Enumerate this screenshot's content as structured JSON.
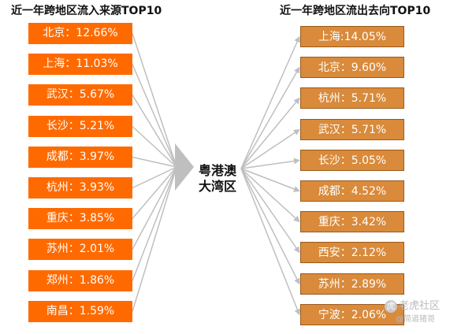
{
  "headings": {
    "inflow": "近一年跨地区流入来源TOP10",
    "outflow": "近一年跨地区流出去向TOP10"
  },
  "center": {
    "line1": "粤港澳",
    "line2": "大湾区"
  },
  "inflow": [
    {
      "city": "北京",
      "share": "12.66%",
      "text": "北京：12.66%"
    },
    {
      "city": "上海",
      "share": "11.03%",
      "text": "上海：11.03%"
    },
    {
      "city": "武汉",
      "share": "5.67%",
      "text": "武汉：5.67%"
    },
    {
      "city": "长沙",
      "share": "5.21%",
      "text": "长沙：5.21%"
    },
    {
      "city": "成都",
      "share": "3.97%",
      "text": "成都：3.97%"
    },
    {
      "city": "杭州",
      "share": "3.93%",
      "text": "杭州：3.93%"
    },
    {
      "city": "重庆",
      "share": "3.85%",
      "text": "重庆：3.85%"
    },
    {
      "city": "苏州",
      "share": "2.01%",
      "text": "苏州：2.01%"
    },
    {
      "city": "郑州",
      "share": "1.86%",
      "text": "郑州：1.86%"
    },
    {
      "city": "南昌",
      "share": "1.59%",
      "text": "南昌：1.59%"
    }
  ],
  "outflow": [
    {
      "city": "上海",
      "share": "14.05%",
      "text": "上海:14.05%"
    },
    {
      "city": "北京",
      "share": "9.60%",
      "text": "北京：9.60%"
    },
    {
      "city": "杭州",
      "share": "5.71%",
      "text": "杭州：5.71%"
    },
    {
      "city": "武汉",
      "share": "5.71%",
      "text": "武汉：5.71%"
    },
    {
      "city": "长沙",
      "share": "5.05%",
      "text": "长沙：5.05%"
    },
    {
      "city": "成都",
      "share": "4.52%",
      "text": "成都：4.52%"
    },
    {
      "city": "重庆",
      "share": "3.42%",
      "text": "重庆：3.42%"
    },
    {
      "city": "西安",
      "share": "2.12%",
      "text": "西安：2.12%"
    },
    {
      "city": "苏州",
      "share": "2.89%",
      "text": "苏州：2.89%"
    },
    {
      "city": "宁波",
      "share": "2.06%",
      "text": "宁波：2.06%"
    }
  ],
  "colors": {
    "inflow_box": "#ff6a00",
    "outflow_box": "#d98a3a",
    "outflow_border": "#9b5a1c",
    "arrow": "#bfbfbf"
  },
  "watermark": {
    "line1": "老虎社区",
    "line2": "@简道猪哥",
    "icon": "tiger-logo-icon"
  }
}
